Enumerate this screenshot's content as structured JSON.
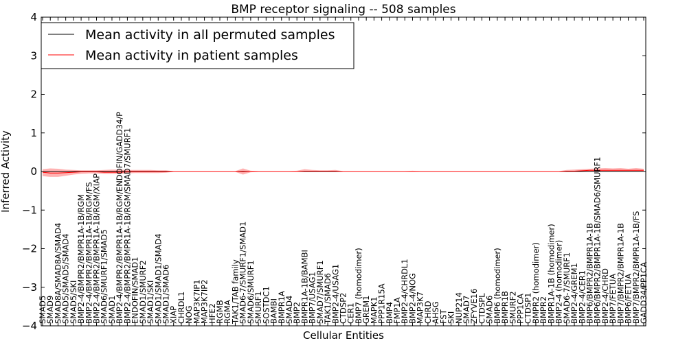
{
  "chart_data": {
    "type": "line",
    "title": "BMP receptor signaling -- 508 samples",
    "xlabel": "Cellular Entities",
    "ylabel": "Inferred Activity",
    "ylim": [
      -4,
      4
    ],
    "yticks": [
      -4,
      -3,
      -2,
      -1,
      0,
      1,
      2,
      3,
      4
    ],
    "ytick_labels": [
      "−4",
      "−3",
      "−2",
      "−1",
      "0",
      "1",
      "2",
      "3",
      "4"
    ],
    "grid": false,
    "legend_position": "top-left",
    "colors": {
      "permuted": "#000000",
      "patient": "#ff0000",
      "band": "#ff0000",
      "baseline": "#ff0000"
    },
    "categories": [
      "SMAD5",
      "SMAD9",
      "SMAD8A/SMAD8A/SMAD4",
      "SMAD5/SMAD5/SMAD4",
      "SMAD5/SKI",
      "BMP2-4/BMPR2/BMPR1A-1B/RGM",
      "BMP2-4/BMPR2/BMPR1A-1B/RGM/FS",
      "BMP2-4/BMPR2/BMPR1A-1B/RGM/XIAP",
      "SMAD6/SMURF1/SMAD5",
      "SMAD1",
      "BMP2-4/BMPR2/BMPR1A-1B/RGM/ENDOFIN/GADD34/P",
      "BMP2-4/BMPR2/BMPR1A-1B/RGM/SMAD7/SMURF1",
      "ENDOFIN/SMAD1",
      "SMAD1/SMURF2",
      "SMAD1/SKI",
      "SMAD1/SMAD1/SMAD4",
      "SMAD1/SMAD6",
      "XIAP",
      "CHRDL1",
      "NOG",
      "MAP3K7IP1",
      "MAP3K7IP2",
      "HFE2",
      "RGMB",
      "RGMA",
      "TAK1/TAB family",
      "SMAD6-7/SMURF1/SMAD1",
      "SMAD6/SMURF1",
      "SMURF1",
      "SOSTDC1",
      "BAMBI",
      "BMPR1A",
      "SMAD4",
      "BMP2",
      "BMPR1A-1B/BAMBI",
      "BMP7/USAG1",
      "SMAD7/SMURF1",
      "TAK1/SMAD6",
      "BMP2-4/USAG1",
      "CTDSP2",
      "CER1",
      "BMP7 (homodimer)",
      "GREM1",
      "MAPK1",
      "PPP1R15A",
      "BMP4",
      "FMP1A",
      "BMP2-4/CHRDL1",
      "BMP2-4/NOG",
      "MAP3K7",
      "CHRD",
      "AHSG",
      "FST",
      "SKI",
      "NUP214",
      "SMAD7",
      "ZFYVE16",
      "CTDSPL",
      "SMAD6",
      "BMP6 (homodimer)",
      "BMPR1B",
      "SMURF2",
      "PPP1CA",
      "CTDSP1",
      "BMPR2 (homodimer)",
      "BMPR2",
      "BMPR1A-1B (homodimer)",
      "BMP2-4 (homodimer)",
      "SMAD6-7/SMURF1",
      "BMP2-4/GREM1",
      "BMP2-4/CER1",
      "BMP6/BMPR2/BMPR1A-1B",
      "BMP6/BMPR2/BMPR1A-1B/SMAD6/SMURF1",
      "BMP2-4/CHRD",
      "BMP7/FETUA",
      "BMP7/BMPR2/BMPR1A-1B",
      "BMP6/FETUA",
      "BMP7/BMPR2/BMPR1A-1B/FS",
      "GADD34/PP1CA"
    ],
    "series": [
      {
        "name": "Mean activity in all permuted samples",
        "values": [
          0,
          0,
          0,
          0,
          0,
          0,
          0,
          0,
          0,
          0,
          0,
          0,
          0,
          0,
          0,
          0,
          0,
          0,
          0,
          0,
          0,
          0,
          0,
          0,
          0,
          0,
          0,
          0,
          0,
          0,
          0,
          0,
          0,
          0,
          0,
          0,
          0,
          0,
          0,
          0,
          0,
          0,
          0,
          0,
          0,
          0,
          0,
          0,
          0,
          0,
          0,
          0,
          0,
          0,
          0,
          0,
          0,
          0,
          0,
          0,
          0,
          0,
          0,
          0,
          0,
          0,
          0,
          0,
          0,
          0,
          0,
          0,
          0,
          0,
          0,
          0,
          0,
          0,
          0
        ]
      },
      {
        "name": "Mean activity in patient samples",
        "values": [
          -0.02,
          -0.04,
          -0.04,
          -0.03,
          -0.02,
          -0.01,
          -0.01,
          -0.01,
          -0.02,
          -0.02,
          -0.02,
          -0.01,
          -0.01,
          -0.01,
          -0.01,
          -0.01,
          -0.01,
          0,
          0,
          0,
          0,
          0,
          0,
          0,
          0,
          0,
          -0.01,
          0,
          0,
          0,
          0,
          0,
          0,
          0,
          0.01,
          0.01,
          0.01,
          0.01,
          0.01,
          0,
          0,
          0,
          0,
          0,
          0,
          0,
          0,
          0,
          0,
          0,
          0,
          0,
          0,
          0,
          0,
          0,
          0,
          0,
          0,
          0,
          0,
          0,
          0,
          0,
          0,
          0,
          0,
          0,
          0.01,
          0.01,
          0.02,
          0.03,
          0.03,
          0.03,
          0.03,
          0.03,
          0.03,
          0.03,
          0.03
        ],
        "lower": [
          -0.12,
          -0.14,
          -0.14,
          -0.11,
          -0.08,
          -0.06,
          -0.05,
          -0.05,
          -0.06,
          -0.06,
          -0.06,
          -0.05,
          -0.04,
          -0.04,
          -0.04,
          -0.04,
          -0.03,
          -0.01,
          -0.01,
          -0.01,
          -0.01,
          -0.01,
          -0.01,
          -0.01,
          -0.01,
          -0.01,
          -0.08,
          -0.02,
          -0.01,
          -0.01,
          -0.01,
          -0.01,
          -0.01,
          -0.01,
          -0.01,
          -0.01,
          -0.01,
          -0.01,
          -0.01,
          -0.01,
          -0.01,
          -0.01,
          -0.01,
          -0.01,
          -0.01,
          -0.01,
          -0.01,
          -0.01,
          -0.01,
          -0.01,
          -0.01,
          -0.01,
          -0.01,
          -0.01,
          -0.01,
          -0.01,
          -0.01,
          -0.01,
          -0.01,
          -0.01,
          -0.01,
          -0.01,
          -0.01,
          -0.01,
          -0.01,
          -0.01,
          -0.01,
          -0.01,
          -0.01,
          -0.01,
          -0.01,
          -0.01,
          -0.01,
          -0.01,
          -0.01,
          -0.01,
          -0.01,
          -0.01,
          -0.01
        ],
        "upper": [
          0.06,
          0.08,
          0.07,
          0.05,
          0.04,
          0.03,
          0.03,
          0.03,
          0.04,
          0.05,
          0.05,
          0.04,
          0.04,
          0.04,
          0.04,
          0.03,
          0.03,
          0.01,
          0.01,
          0.01,
          0.01,
          0.01,
          0.01,
          0.01,
          0.01,
          0.01,
          0.08,
          0.02,
          0.01,
          0.01,
          0.01,
          0.01,
          0.01,
          0.02,
          0.06,
          0.04,
          0.03,
          0.03,
          0.04,
          0.01,
          0.01,
          0.01,
          0.01,
          0.01,
          0.01,
          0.01,
          0.01,
          0.01,
          0.02,
          0.01,
          0.01,
          0.01,
          0.01,
          0.01,
          0.01,
          0.01,
          0.01,
          0.01,
          0.01,
          0.01,
          0.01,
          0.01,
          0.01,
          0.01,
          0.01,
          0.01,
          0.01,
          0.01,
          0.04,
          0.05,
          0.06,
          0.07,
          0.08,
          0.09,
          0.08,
          0.09,
          0.07,
          0.09,
          0.07
        ]
      }
    ]
  }
}
